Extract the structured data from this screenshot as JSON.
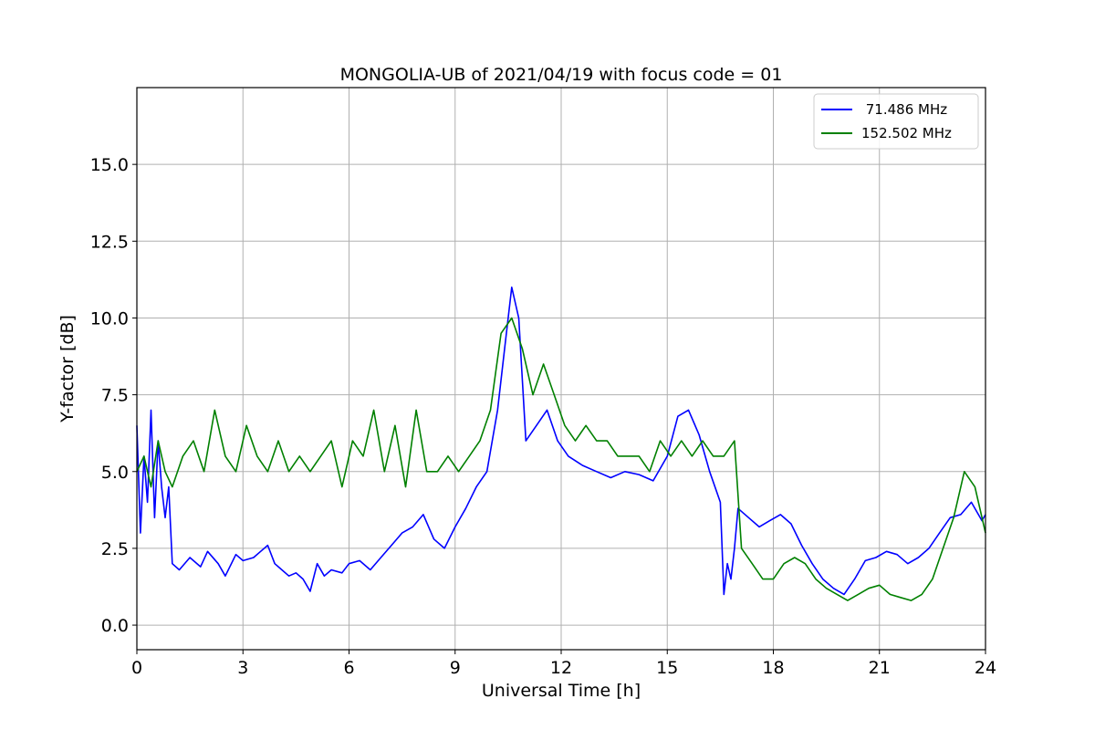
{
  "chart_data": {
    "type": "line",
    "title": "MONGOLIA-UB of 2021/04/19 with focus code = 01",
    "xlabel": "Universal Time [h]",
    "ylabel": "Y-factor [dB]",
    "xlim": [
      0,
      24
    ],
    "ylim": [
      -0.8,
      17.5
    ],
    "xticks": [
      0,
      3,
      6,
      9,
      12,
      15,
      18,
      21,
      24
    ],
    "xtick_labels": [
      "0",
      "3",
      "6",
      "9",
      "12",
      "15",
      "18",
      "21",
      "24"
    ],
    "yticks": [
      0.0,
      2.5,
      5.0,
      7.5,
      10.0,
      12.5,
      15.0
    ],
    "ytick_labels": [
      "0.0",
      "2.5",
      "5.0",
      "7.5",
      "10.0",
      "12.5",
      "15.0"
    ],
    "grid": true,
    "legend_position": "top-right",
    "series": [
      {
        "name": "71.486 MHz",
        "legend_label": " 71.486 MHz",
        "color": "#0000ff",
        "x": [
          0,
          0.1,
          0.2,
          0.3,
          0.4,
          0.5,
          0.6,
          0.7,
          0.8,
          0.9,
          1.0,
          1.2,
          1.5,
          1.8,
          2.0,
          2.3,
          2.5,
          2.8,
          3.0,
          3.3,
          3.5,
          3.7,
          3.9,
          4.1,
          4.3,
          4.5,
          4.7,
          4.9,
          5.1,
          5.3,
          5.5,
          5.8,
          6.0,
          6.3,
          6.6,
          6.9,
          7.2,
          7.5,
          7.8,
          8.1,
          8.4,
          8.7,
          9.0,
          9.3,
          9.6,
          9.9,
          10.2,
          10.4,
          10.6,
          10.8,
          11.0,
          11.3,
          11.6,
          11.9,
          12.2,
          12.6,
          13.0,
          13.4,
          13.8,
          14.2,
          14.6,
          15.0,
          15.3,
          15.6,
          15.9,
          16.2,
          16.5,
          16.6,
          16.7,
          16.8,
          16.9,
          17.0,
          17.3,
          17.6,
          17.9,
          18.2,
          18.5,
          18.8,
          19.1,
          19.4,
          19.7,
          20.0,
          20.3,
          20.6,
          20.9,
          21.2,
          21.5,
          21.8,
          22.1,
          22.4,
          22.7,
          23.0,
          23.3,
          23.6,
          23.9,
          24.0
        ],
        "y": [
          6.5,
          3.0,
          5.5,
          4.0,
          7.0,
          3.5,
          6.0,
          4.5,
          3.5,
          4.5,
          2.0,
          1.8,
          2.2,
          1.9,
          2.4,
          2.0,
          1.6,
          2.3,
          2.1,
          2.2,
          2.4,
          2.6,
          2.0,
          1.8,
          1.6,
          1.7,
          1.5,
          1.1,
          2.0,
          1.6,
          1.8,
          1.7,
          2.0,
          2.1,
          1.8,
          2.2,
          2.6,
          3.0,
          3.2,
          3.6,
          2.8,
          2.5,
          3.2,
          3.8,
          4.5,
          5.0,
          7.0,
          9.0,
          11.0,
          10.0,
          6.0,
          6.5,
          7.0,
          6.0,
          5.5,
          5.2,
          5.0,
          4.8,
          5.0,
          4.9,
          4.7,
          5.5,
          6.8,
          7.0,
          6.2,
          5.0,
          4.0,
          1.0,
          2.0,
          1.5,
          2.5,
          3.8,
          3.5,
          3.2,
          3.4,
          3.6,
          3.3,
          2.6,
          2.0,
          1.5,
          1.2,
          1.0,
          1.5,
          2.1,
          2.2,
          2.4,
          2.3,
          2.0,
          2.2,
          2.5,
          3.0,
          3.5,
          3.6,
          4.0,
          3.4,
          3.6
        ]
      },
      {
        "name": "152.502 MHz",
        "legend_label": "152.502 MHz",
        "color": "#008000",
        "x": [
          0,
          0.2,
          0.4,
          0.6,
          0.8,
          1.0,
          1.3,
          1.6,
          1.9,
          2.2,
          2.5,
          2.8,
          3.1,
          3.4,
          3.7,
          4.0,
          4.3,
          4.6,
          4.9,
          5.2,
          5.5,
          5.8,
          6.1,
          6.4,
          6.7,
          7.0,
          7.3,
          7.6,
          7.9,
          8.2,
          8.5,
          8.8,
          9.1,
          9.4,
          9.7,
          10.0,
          10.3,
          10.6,
          10.9,
          11.2,
          11.5,
          11.8,
          12.1,
          12.4,
          12.7,
          13.0,
          13.3,
          13.6,
          13.9,
          14.2,
          14.5,
          14.8,
          15.1,
          15.4,
          15.7,
          16.0,
          16.3,
          16.6,
          16.9,
          17.1,
          17.4,
          17.7,
          18.0,
          18.3,
          18.6,
          18.9,
          19.2,
          19.5,
          19.8,
          20.1,
          20.4,
          20.7,
          21.0,
          21.3,
          21.6,
          21.9,
          22.2,
          22.5,
          22.8,
          23.1,
          23.4,
          23.7,
          24.0
        ],
        "y": [
          5.0,
          5.5,
          4.5,
          6.0,
          5.0,
          4.5,
          5.5,
          6.0,
          5.0,
          7.0,
          5.5,
          5.0,
          6.5,
          5.5,
          5.0,
          6.0,
          5.0,
          5.5,
          5.0,
          5.5,
          6.0,
          4.5,
          6.0,
          5.5,
          7.0,
          5.0,
          6.5,
          4.5,
          7.0,
          5.0,
          5.0,
          5.5,
          5.0,
          5.5,
          6.0,
          7.0,
          9.5,
          10.0,
          9.0,
          7.5,
          8.5,
          7.5,
          6.5,
          6.0,
          6.5,
          6.0,
          6.0,
          5.5,
          5.5,
          5.5,
          5.0,
          6.0,
          5.5,
          6.0,
          5.5,
          6.0,
          5.5,
          5.5,
          6.0,
          2.5,
          2.0,
          1.5,
          1.5,
          2.0,
          2.2,
          2.0,
          1.5,
          1.2,
          1.0,
          0.8,
          1.0,
          1.2,
          1.3,
          1.0,
          0.9,
          0.8,
          1.0,
          1.5,
          2.5,
          3.5,
          5.0,
          4.5,
          3.0
        ]
      }
    ]
  }
}
